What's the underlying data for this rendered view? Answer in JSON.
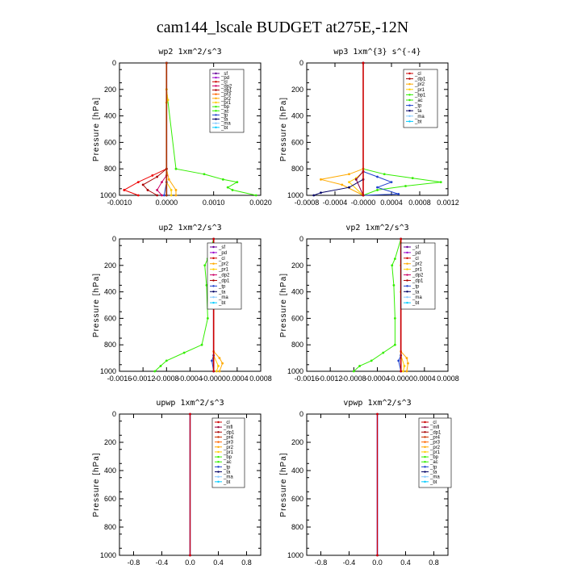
{
  "figure": {
    "title": "cam144_lscale  BUDGET at275E,-12N"
  },
  "chart_data": [
    {
      "type": "line",
      "title": "wp2   1xm^2/s^3",
      "ylabel": "Pressure  [hPa]",
      "xlim": [
        -0.001,
        0.002
      ],
      "ylim": [
        1000,
        0
      ],
      "xticks": [
        "-0.0010",
        "0.0000",
        "0.0010",
        "0.0020"
      ],
      "yticks": [
        "0",
        "200",
        "400",
        "600",
        "800",
        "1000"
      ],
      "legend": [
        "_sf",
        "_pd",
        "_cl",
        "_dp2",
        "_dp1",
        "_pr3",
        "_pr2",
        "_pr1",
        "_bp",
        "_ac",
        "_tp",
        "_ta",
        "_ma",
        "_bt"
      ],
      "series": [
        {
          "name": "_ac",
          "color": "#33ee00",
          "points": [
            [
              0,
              0
            ],
            [
              0,
              200
            ],
            [
              0.0002,
              800
            ],
            [
              0.0008,
              840
            ],
            [
              0.0012,
              880
            ],
            [
              0.0015,
              900
            ],
            [
              0.0013,
              940
            ],
            [
              0.0014,
              960
            ],
            [
              0.0019,
              1000
            ]
          ]
        },
        {
          "name": "_pr3",
          "color": "#ffaa00",
          "points": [
            [
              0,
              0
            ],
            [
              0,
              800
            ],
            [
              5e-05,
              880
            ],
            [
              0.0002,
              960
            ],
            [
              0.0002,
              1000
            ]
          ]
        },
        {
          "name": "_pr2",
          "color": "#ffcc00",
          "points": [
            [
              0,
              0
            ],
            [
              0,
              200
            ],
            [
              3e-05,
              280
            ],
            [
              0,
              300
            ],
            [
              0,
              900
            ],
            [
              0.0001,
              960
            ],
            [
              0.0001,
              1000
            ]
          ]
        },
        {
          "name": "_pr1",
          "color": "#ee0000",
          "points": [
            [
              0,
              0
            ],
            [
              0,
              800
            ],
            [
              -0.0003,
              850
            ],
            [
              -0.0006,
              900
            ],
            [
              -0.0009,
              960
            ],
            [
              -0.0006,
              1000
            ]
          ]
        },
        {
          "name": "_dp1",
          "color": "#aa0000",
          "points": [
            [
              0,
              0
            ],
            [
              0,
              800
            ],
            [
              -0.0002,
              860
            ],
            [
              -0.0005,
              920
            ],
            [
              -0.0004,
              960
            ],
            [
              -0.0002,
              1000
            ]
          ]
        },
        {
          "name": "_dp2",
          "color": "#cc0066",
          "points": [
            [
              0,
              0
            ],
            [
              0,
              850
            ],
            [
              -0.0001,
              900
            ],
            [
              -0.0002,
              960
            ],
            [
              -0.0001,
              1000
            ]
          ]
        },
        {
          "name": "_sf",
          "color": "#660099",
          "points": [
            [
              0,
              0
            ],
            [
              0,
              1000
            ]
          ]
        },
        {
          "name": "_bt",
          "color": "#00ccff",
          "points": [
            [
              0,
              0
            ],
            [
              0,
              1000
            ]
          ]
        },
        {
          "name": "_tp",
          "color": "#2244cc",
          "points": [
            [
              0,
              0
            ],
            [
              0,
              900
            ],
            [
              -5e-05,
              1000
            ]
          ]
        },
        {
          "name": "_ta",
          "color": "#000066",
          "points": [
            [
              0,
              0
            ],
            [
              0,
              1000
            ]
          ]
        },
        {
          "name": "_cl",
          "color": "#aa3300",
          "points": [
            [
              0,
              0
            ],
            [
              0,
              1000
            ]
          ]
        }
      ]
    },
    {
      "type": "line",
      "title": "wp3   1xm^{3} s^{-4}",
      "ylabel": "Pressure  [hPa]",
      "xlim": [
        -0.0008,
        0.0012
      ],
      "ylim": [
        1000,
        0
      ],
      "xticks": [
        "-0.0008",
        "-0.0004",
        "-0.0000",
        "0.0004",
        "0.0008",
        "0.0012"
      ],
      "yticks": [
        "0",
        "200",
        "400",
        "600",
        "800",
        "1000"
      ],
      "legend": [
        "_cl",
        "_dp1",
        "_pr2",
        "_pr1",
        "_bp1",
        "_ac",
        "_tp",
        "_ta",
        "_ma",
        "_bt"
      ],
      "series": [
        {
          "name": "_ac",
          "color": "#33ee00",
          "points": [
            [
              0,
              0
            ],
            [
              0,
              800
            ],
            [
              0.0003,
              840
            ],
            [
              0.0007,
              870
            ],
            [
              0.0011,
              900
            ],
            [
              0.0006,
              930
            ],
            [
              0.0002,
              960
            ],
            [
              0,
              1000
            ]
          ]
        },
        {
          "name": "_pr2",
          "color": "#ffaa00",
          "points": [
            [
              0,
              0
            ],
            [
              0,
              800
            ],
            [
              -0.0002,
              840
            ],
            [
              -0.0006,
              880
            ],
            [
              -0.0003,
              920
            ],
            [
              0,
              1000
            ]
          ]
        },
        {
          "name": "_pr1",
          "color": "#ffcc00",
          "points": [
            [
              0,
              0
            ],
            [
              0,
              820
            ],
            [
              -0.0001,
              870
            ],
            [
              -0.0002,
              900
            ],
            [
              0,
              1000
            ]
          ]
        },
        {
          "name": "_tp",
          "color": "#2244cc",
          "points": [
            [
              0,
              0
            ],
            [
              0,
              820
            ],
            [
              0.0002,
              860
            ],
            [
              0.0004,
              900
            ],
            [
              0.0002,
              940
            ],
            [
              0.0005,
              990
            ],
            [
              0,
              1000
            ]
          ]
        },
        {
          "name": "_ta",
          "color": "#000066",
          "points": [
            [
              0,
              0
            ],
            [
              0,
              880
            ],
            [
              -0.0002,
              940
            ],
            [
              -0.0006,
              980
            ],
            [
              -0.0007,
              1000
            ]
          ]
        },
        {
          "name": "_dp1",
          "color": "#880044",
          "points": [
            [
              0,
              0
            ],
            [
              0,
              820
            ],
            [
              -0.0001,
              880
            ],
            [
              0,
              1000
            ]
          ]
        },
        {
          "name": "_cl",
          "color": "#cc0000",
          "points": [
            [
              0,
              0
            ],
            [
              0,
              1000
            ]
          ]
        }
      ]
    },
    {
      "type": "line",
      "title": "up2   1xm^2/s^3",
      "ylabel": "Pressure  [hPa]",
      "xlim": [
        -0.0016,
        0.0008
      ],
      "ylim": [
        1000,
        0
      ],
      "xticks": [
        "-0.0016",
        "-0.0012",
        "-0.0008",
        "-0.0004",
        "-0.0000",
        "0.0004",
        "0.0008"
      ],
      "yticks": [
        "0",
        "200",
        "400",
        "600",
        "800",
        "1000"
      ],
      "legend": [
        "_sf",
        "_pd",
        "_cl",
        "_pr2",
        "_pr1",
        "_dp2",
        "_dp1",
        "_tp",
        "_ta",
        "_ma",
        "_bt"
      ],
      "series": [
        {
          "name": "_pr1",
          "color": "#33ee00",
          "points": [
            [
              0,
              0
            ],
            [
              -0.0001,
              150
            ],
            [
              -0.00015,
              200
            ],
            [
              -0.00012,
              350
            ],
            [
              -0.0001,
              600
            ],
            [
              -0.0002,
              800
            ],
            [
              -0.0005,
              860
            ],
            [
              -0.0008,
              920
            ],
            [
              -0.0009,
              960
            ],
            [
              -0.001,
              1000
            ]
          ]
        },
        {
          "name": "_pr2",
          "color": "#ffaa00",
          "points": [
            [
              0,
              0
            ],
            [
              0,
              850
            ],
            [
              0.0001,
              900
            ],
            [
              0.00015,
              940
            ],
            [
              0.0001,
              1000
            ]
          ]
        },
        {
          "name": "_dp2",
          "color": "#ffcc00",
          "points": [
            [
              0,
              0
            ],
            [
              0,
              200
            ],
            [
              3e-05,
              300
            ],
            [
              0,
              400
            ],
            [
              0,
              880
            ],
            [
              8e-05,
              960
            ],
            [
              5e-05,
              1000
            ]
          ]
        },
        {
          "name": "_sf",
          "color": "#660099",
          "points": [
            [
              0,
              0
            ],
            [
              0,
              1000
            ]
          ]
        },
        {
          "name": "_tp",
          "color": "#2244cc",
          "points": [
            [
              0,
              0
            ],
            [
              0,
              880
            ],
            [
              -3e-05,
              920
            ],
            [
              0,
              1000
            ]
          ]
        },
        {
          "name": "_cl",
          "color": "#cc0000",
          "points": [
            [
              0,
              0
            ],
            [
              0,
              1000
            ]
          ]
        }
      ]
    },
    {
      "type": "line",
      "title": "vp2   1xm^2/s^3",
      "ylabel": "Pressure  [hPa]",
      "xlim": [
        -0.0016,
        0.0008
      ],
      "ylim": [
        1000,
        0
      ],
      "xticks": [
        "-0.0016",
        "-0.0012",
        "-0.0008",
        "-0.0004",
        "-0.0000",
        "0.0004",
        "0.0008"
      ],
      "yticks": [
        "0",
        "200",
        "400",
        "600",
        "800",
        "1000"
      ],
      "legend": [
        "_sf",
        "_pd",
        "_cl",
        "_pr2",
        "_pr1",
        "_dp2",
        "_dp1",
        "_tp",
        "_ta",
        "_ma",
        "_bt"
      ],
      "series": [
        {
          "name": "_pr1",
          "color": "#33ee00",
          "points": [
            [
              0,
              0
            ],
            [
              -0.0001,
              150
            ],
            [
              -0.00015,
              200
            ],
            [
              -0.00012,
              350
            ],
            [
              -0.0001,
              600
            ],
            [
              -0.0001,
              800
            ],
            [
              -0.0003,
              860
            ],
            [
              -0.0005,
              920
            ],
            [
              -0.0007,
              960
            ],
            [
              -0.0008,
              1000
            ]
          ]
        },
        {
          "name": "_pr2",
          "color": "#ffaa00",
          "points": [
            [
              0,
              0
            ],
            [
              0,
              850
            ],
            [
              0.0001,
              900
            ],
            [
              0.00012,
              940
            ],
            [
              0.0001,
              1000
            ]
          ]
        },
        {
          "name": "_dp2",
          "color": "#ffcc00",
          "points": [
            [
              0,
              0
            ],
            [
              0,
              200
            ],
            [
              3e-05,
              300
            ],
            [
              0,
              400
            ],
            [
              0,
              880
            ],
            [
              6e-05,
              960
            ],
            [
              4e-05,
              1000
            ]
          ]
        },
        {
          "name": "_sf",
          "color": "#660099",
          "points": [
            [
              0,
              0
            ],
            [
              0,
              1000
            ]
          ]
        },
        {
          "name": "_tp",
          "color": "#2244cc",
          "points": [
            [
              0,
              0
            ],
            [
              0,
              880
            ],
            [
              -4e-05,
              920
            ],
            [
              0,
              1000
            ]
          ]
        },
        {
          "name": "_cl",
          "color": "#cc0000",
          "points": [
            [
              0,
              0
            ],
            [
              0,
              1000
            ]
          ]
        }
      ]
    },
    {
      "type": "line",
      "title": "upwp   1xm^2/s^3",
      "ylabel": "Pressure  [hPa]",
      "xlim": [
        -1.0,
        1.0
      ],
      "ylim": [
        1000,
        0
      ],
      "xticks": [
        "-0.8",
        "-0.4",
        "0.0",
        "0.4",
        "0.8"
      ],
      "yticks": [
        "0",
        "200",
        "400",
        "600",
        "800",
        "1000"
      ],
      "legend": [
        "_cl",
        "_mfl",
        "_dp1",
        "_pr4",
        "_pr3",
        "_pr2",
        "_pr1",
        "_bp",
        "_ac",
        "_tp",
        "_ta",
        "_ma",
        "_bt"
      ],
      "series": [
        {
          "name": "_cl",
          "color": "#660099",
          "points": [
            [
              0,
              0
            ],
            [
              0,
              1000
            ]
          ]
        },
        {
          "name": "_dp1",
          "color": "#cc0000",
          "points": [
            [
              0,
              0
            ],
            [
              0,
              1000
            ]
          ]
        }
      ]
    },
    {
      "type": "line",
      "title": "vpwp   1xm^2/s^3",
      "ylabel": "Pressure  [hPa]",
      "xlim": [
        -1.0,
        1.0
      ],
      "ylim": [
        1000,
        0
      ],
      "xticks": [
        "-0.8",
        "-0.4",
        "0.0",
        "0.4",
        "0.8"
      ],
      "yticks": [
        "0",
        "200",
        "400",
        "600",
        "800",
        "1000"
      ],
      "legend": [
        "_cl",
        "_mfl",
        "_dp1",
        "_pr4",
        "_pr3",
        "_pr2",
        "_pr1",
        "_bp",
        "_ac",
        "_tp",
        "_ta",
        "_ma",
        "_bt"
      ],
      "series": [
        {
          "name": "_cl",
          "color": "#660099",
          "points": [
            [
              0,
              0
            ],
            [
              0,
              1000
            ]
          ]
        },
        {
          "name": "_dp1",
          "color": "#cc0000",
          "points": [
            [
              0,
              0
            ],
            [
              0,
              1000
            ]
          ]
        }
      ]
    }
  ],
  "legend_colors": {
    "_sf": "#660099",
    "_pd": "#9900cc",
    "_cl": "#cc0000",
    "_dp2": "#cc0066",
    "_dp1": "#aa0000",
    "_pr4": "#cc3300",
    "_pr3": "#ff6600",
    "_pr2": "#ffaa00",
    "_pr1": "#ffcc00",
    "_bp": "#33ee00",
    "_bp1": "#33ee00",
    "_ac": "#33ee00",
    "_tp": "#2244cc",
    "_ta": "#000066",
    "_ma": "#88ccff",
    "_bt": "#00ccff",
    "_mfl": "#990033"
  }
}
